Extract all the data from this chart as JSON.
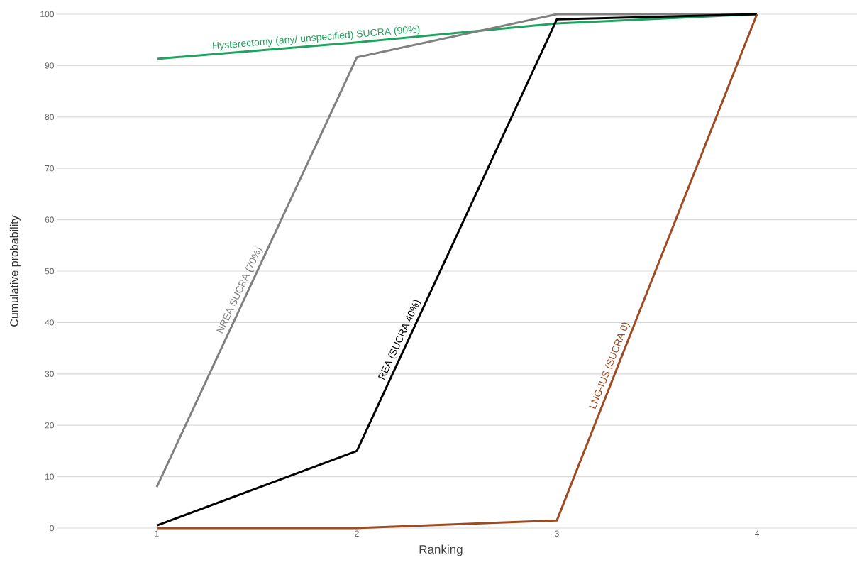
{
  "chart_data": {
    "type": "line",
    "xlabel": "Ranking",
    "ylabel": "Cumulative probability",
    "x": [
      1,
      2,
      3,
      4
    ],
    "xlim": [
      0.5,
      4.5
    ],
    "xticks": [
      1,
      2,
      3,
      4
    ],
    "ylim": [
      0,
      100
    ],
    "yticks": [
      0,
      10,
      20,
      30,
      40,
      50,
      60,
      70,
      80,
      90,
      100
    ],
    "grid": "y",
    "marker": "none",
    "series": [
      {
        "name": "Hysterectomy (any/ unspecified) SUCRA (90%)",
        "color": "#1fa35f",
        "values": [
          91.3,
          94.5,
          98.2,
          100
        ]
      },
      {
        "name": "NREA SUCRA (70%)",
        "color": "#808080",
        "values": [
          8,
          91.6,
          100,
          100
        ]
      },
      {
        "name": "REA (SUCRA 40%)",
        "color": "#000000",
        "values": [
          0.5,
          15,
          99,
          100
        ]
      },
      {
        "name": "LNG-IUS (SUCRA 0)",
        "color": "#9e4a22",
        "values": [
          0,
          0,
          1.5,
          100
        ]
      }
    ]
  }
}
